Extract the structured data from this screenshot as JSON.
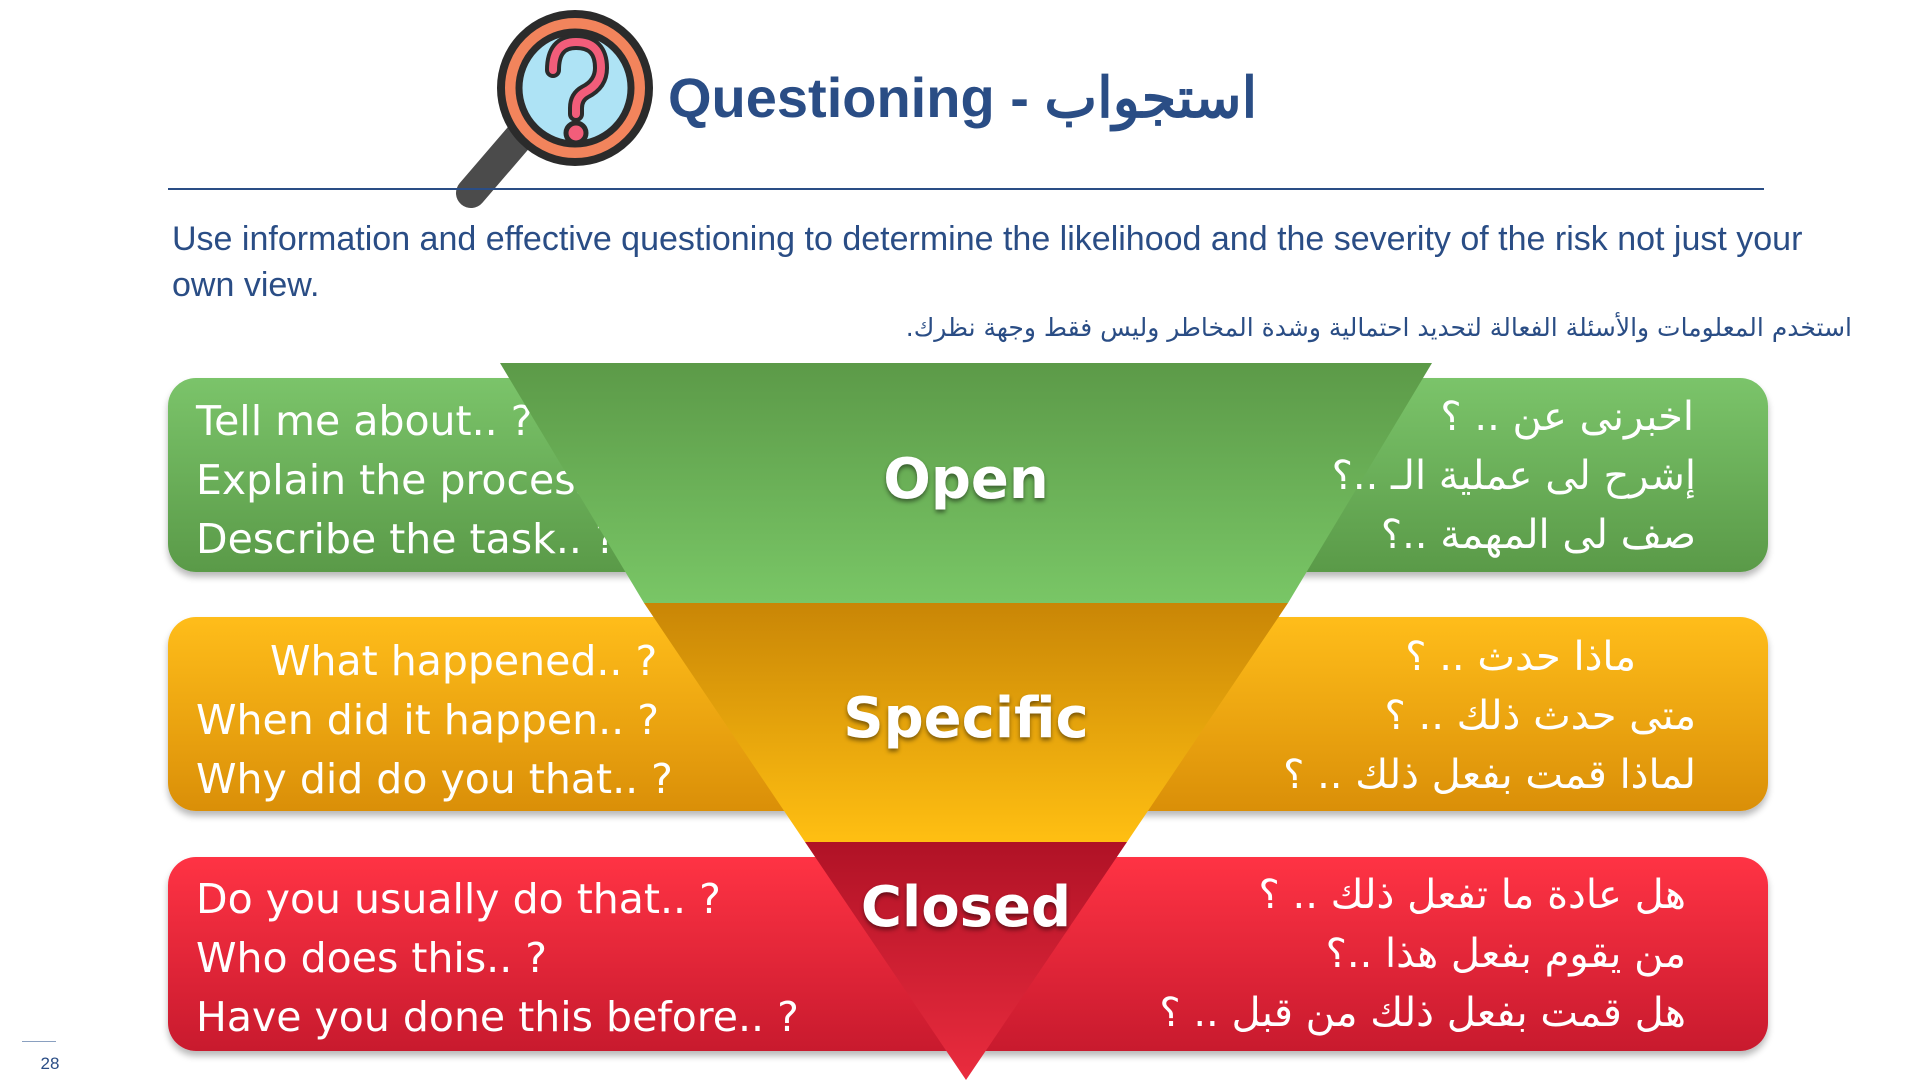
{
  "header": {
    "title": "Questioning - استجواب",
    "icon": "magnifier-question-icon"
  },
  "intro": {
    "english": "Use information and effective questioning to determine the likelihood and the severity of the risk not just your own view.",
    "arabic": "استخدم المعلومات والأسئلة الفعالة لتحديد احتمالية وشدة المخاطر وليس فقط وجهة نظرك."
  },
  "stages": [
    {
      "label": "Open",
      "color": "#6cb25a",
      "english": [
        "Tell me about.. ?",
        "Explain the process",
        "Describe the task.. ?"
      ],
      "arabic": [
        "اخبرنى عن .. ؟",
        "إشرح لى عملية الـ ..؟",
        "صف لى المهمة ..؟"
      ]
    },
    {
      "label": "Specific",
      "color": "#f0a50e",
      "english": [
        "What happened.. ?",
        "When did it happen.. ?",
        "Why did do you that.. ?"
      ],
      "arabic": [
        "ماذا حدث  .. ؟",
        "متى حدث ذلك .. ؟",
        "لماذا قمت بفعل ذلك .. ؟"
      ]
    },
    {
      "label": "Closed",
      "color": "#e0283a",
      "english": [
        "Do you usually do that.. ?",
        "Who does this.. ?",
        "Have you done this before.. ?"
      ],
      "arabic": [
        "هل عادة ما تفعل ذلك .. ؟",
        "من يقوم بفعل هذا ..؟",
        "هل قمت بفعل ذلك من قبل .. ؟"
      ]
    }
  ],
  "footer": {
    "slide_number": "28"
  }
}
